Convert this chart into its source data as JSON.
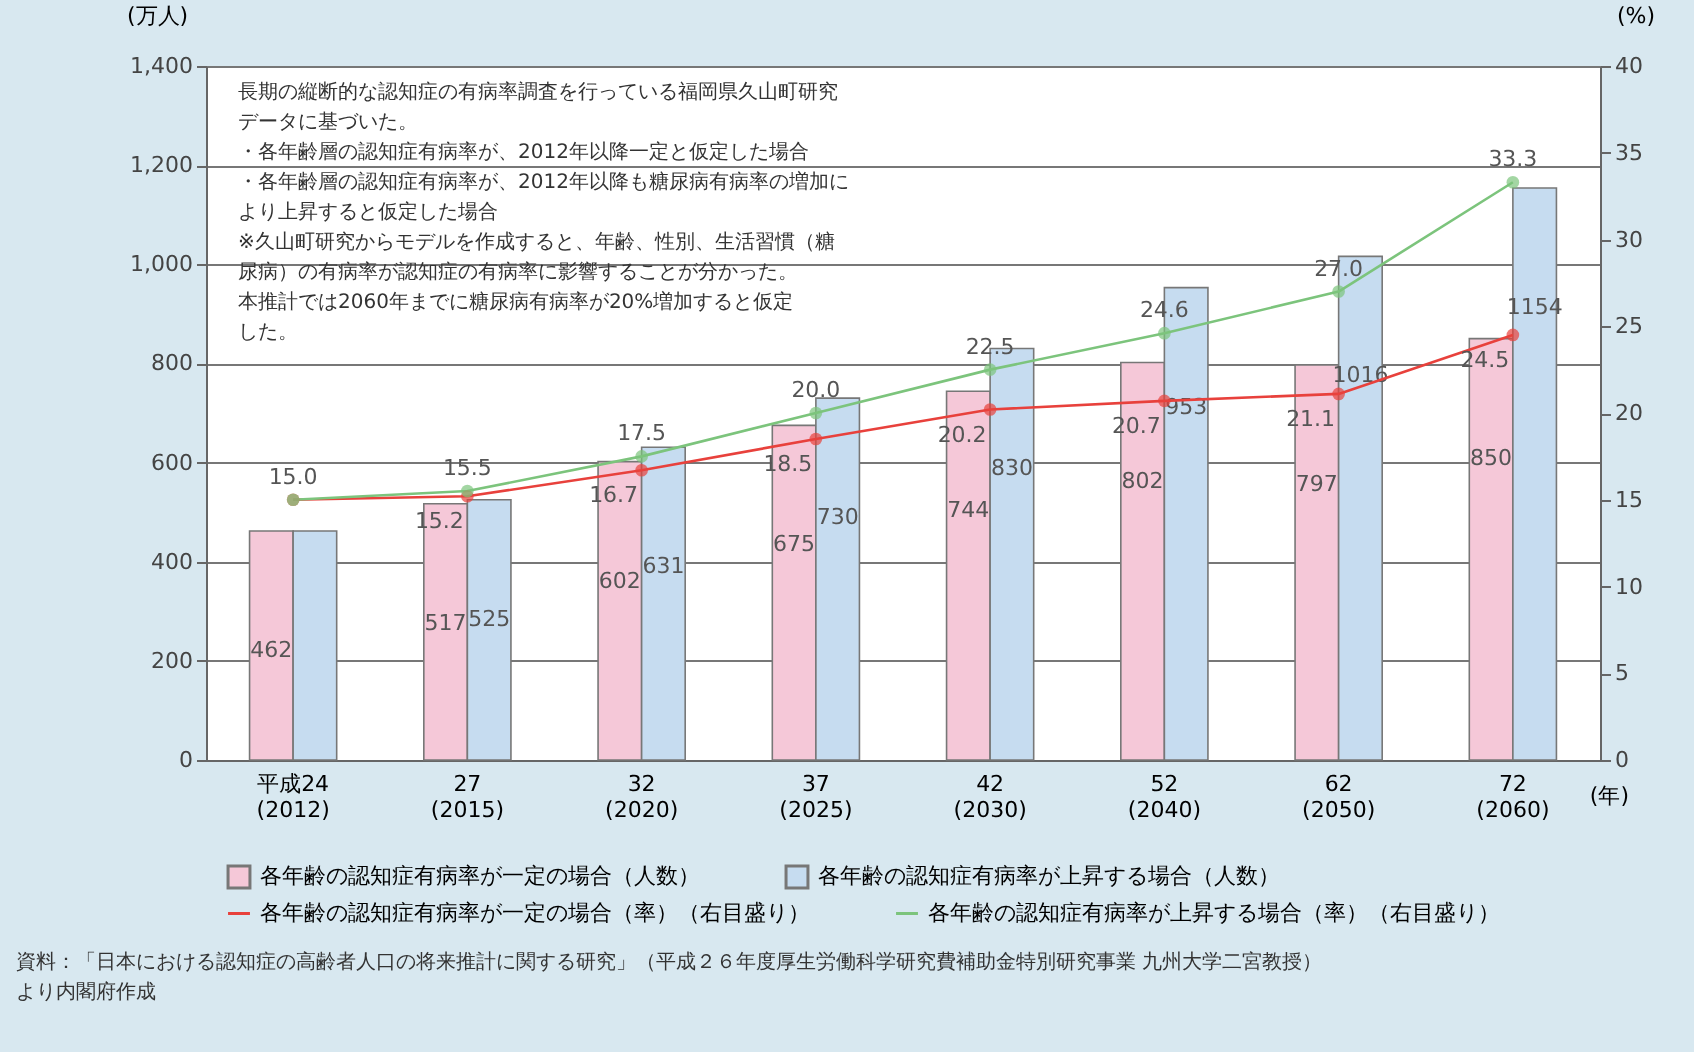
{
  "chart_data": {
    "type": "bar",
    "categories": [
      "平成24 (2012)",
      "27 (2015)",
      "32 (2020)",
      "37 (2025)",
      "42 (2030)",
      "52 (2040)",
      "62 (2050)",
      "72 (2060)"
    ],
    "xlabel": "(年)",
    "ylabel": "(万人)",
    "y2label": "(%)",
    "ylim": [
      0,
      1400
    ],
    "yticks": [
      0,
      200,
      400,
      600,
      800,
      {
        "value": 1000,
        "label": "1,000"
      },
      {
        "value": 1200,
        "label": "1,200"
      },
      {
        "value": 1400,
        "label": "1,400"
      }
    ],
    "y2lim": [
      0,
      40
    ],
    "y2ticks": [
      0,
      5,
      10,
      15,
      20,
      25,
      30,
      35,
      40
    ],
    "grid": "y",
    "legend": "bottom",
    "marker": "circle",
    "series": [
      {
        "name": "各年齢の認知症有病率が一定の場合（人数）",
        "color": "#f5c8d8",
        "values": [
          462,
          517,
          602,
          675,
          744,
          802,
          797,
          850
        ],
        "value_labels": [
          "462",
          "517",
          "602",
          "675",
          "744",
          "802",
          "797",
          "850"
        ]
      },
      {
        "name": "各年齢の認知症有病率が上昇する場合（人数）",
        "color": "#c6dcf0",
        "values": [
          462,
          525,
          631,
          730,
          830,
          953,
          1016,
          1154
        ],
        "value_labels": [
          null,
          "525",
          "631",
          "730",
          "830",
          "953",
          "1016",
          "1154"
        ]
      },
      {
        "name": "各年齢の認知症有病率が一定の場合（率）（右目盛り）",
        "type": "line",
        "axis": "y2",
        "color": "#e8413c",
        "values": [
          15.0,
          15.2,
          16.7,
          18.5,
          20.2,
          20.7,
          21.1,
          24.5
        ],
        "value_labels": [
          null,
          "15.2",
          "16.7",
          "18.5",
          "20.2",
          "20.7",
          "21.1",
          "24.5"
        ]
      },
      {
        "name": "各年齢の認知症有病率が上昇する場合（率）（右目盛り）",
        "type": "line",
        "axis": "y2",
        "color": "#7cc47c",
        "values": [
          15.0,
          15.5,
          17.5,
          20.0,
          22.5,
          24.6,
          27.0,
          33.3
        ],
        "value_labels": [
          "15.0",
          "15.5",
          "17.5",
          "20.0",
          "22.5",
          "24.6",
          "27.0",
          "33.3"
        ]
      }
    ],
    "annotations": [
      "長期の縦断的な認知症の有病率調査を行っている福岡県久山町研究",
      "データに基づいた。",
      "・各年齢層の認知症有病率が、2012年以降一定と仮定した場合",
      "・各年齢層の認知症有病率が、2012年以降も糖尿病有病率の増加に",
      "　より上昇すると仮定した場合",
      "　※久山町研究からモデルを作成すると、年齢、性別、生活習慣（糖",
      "　　尿病）の有病率が認知症の有病率に影響することが分かった。",
      "　　本推計では2060年までに糖尿病有病率が20%増加すると仮定",
      "　　した。",
      "資料：「日本における認知症の高齢者人口の将来推計に関する研究」（平成２６年度厚生労働科学研究費補助金特別研究事業 九州大学二宮教授）",
      "より内閣府作成"
    ]
  }
}
